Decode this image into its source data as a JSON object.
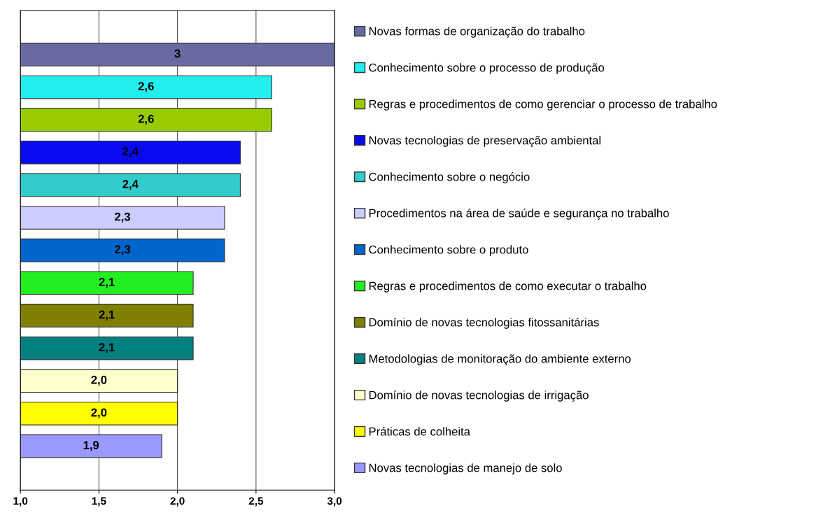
{
  "chart_data": {
    "type": "bar",
    "orientation": "horizontal",
    "categories": [
      null
    ],
    "series": [
      {
        "name": "Novas formas de organização do trabalho",
        "color": "#6a6aa2",
        "values": [
          3
        ],
        "value_labels": [
          "3"
        ]
      },
      {
        "name": "Conhecimento sobre o processo de produção",
        "color": "#22eeee",
        "values": [
          2.6
        ],
        "value_labels": [
          "2,6"
        ]
      },
      {
        "name": "Regras e procedimentos de como gerenciar o processo de trabalho",
        "color": "#99cc00",
        "values": [
          2.6
        ],
        "value_labels": [
          "2,6"
        ]
      },
      {
        "name": "Novas tecnologias de preservação ambiental",
        "color": "#0a0aee",
        "values": [
          2.4
        ],
        "value_labels": [
          "2,4"
        ]
      },
      {
        "name": "Conhecimento sobre o negócio",
        "color": "#33cccc",
        "values": [
          2.4
        ],
        "value_labels": [
          "2,4"
        ]
      },
      {
        "name": "Procedimentos na área de saúde e segurança no trabalho",
        "color": "#ccccff",
        "values": [
          2.3
        ],
        "value_labels": [
          "2,3"
        ]
      },
      {
        "name": "Conhecimento sobre o produto",
        "color": "#0066cc",
        "values": [
          2.3
        ],
        "value_labels": [
          "2,3"
        ]
      },
      {
        "name": "Regras e procedimentos de como executar o trabalho",
        "color": "#22ee22",
        "values": [
          2.1
        ],
        "value_labels": [
          "2,1"
        ]
      },
      {
        "name": "Domínio de novas tecnologias fitossanitárias",
        "color": "#808000",
        "values": [
          2.1
        ],
        "value_labels": [
          "2,1"
        ]
      },
      {
        "name": "Metodologias de monitoração do ambiente externo",
        "color": "#008080",
        "values": [
          2.1
        ],
        "value_labels": [
          "2,1"
        ]
      },
      {
        "name": "Domínio de novas tecnologias de irrigação",
        "color": "#ffffcc",
        "values": [
          2.0
        ],
        "value_labels": [
          "2,0"
        ]
      },
      {
        "name": "Práticas de colheita",
        "color": "#ffff00",
        "values": [
          2.0
        ],
        "value_labels": [
          "2,0"
        ]
      },
      {
        "name": "Novas tecnologias de manejo de solo",
        "color": "#9999ff",
        "values": [
          1.9
        ],
        "value_labels": [
          "1,9"
        ]
      }
    ],
    "xlim": [
      1,
      3
    ],
    "xticks": [
      {
        "value": 1,
        "label": "1,0"
      },
      {
        "value": 1.5,
        "label": "1,5"
      },
      {
        "value": 2,
        "label": "2,0"
      },
      {
        "value": 2.5,
        "label": "2,5"
      },
      {
        "value": 3,
        "label": "3,0"
      }
    ],
    "grid": "x",
    "legend": "right",
    "tick_labels": "x"
  }
}
